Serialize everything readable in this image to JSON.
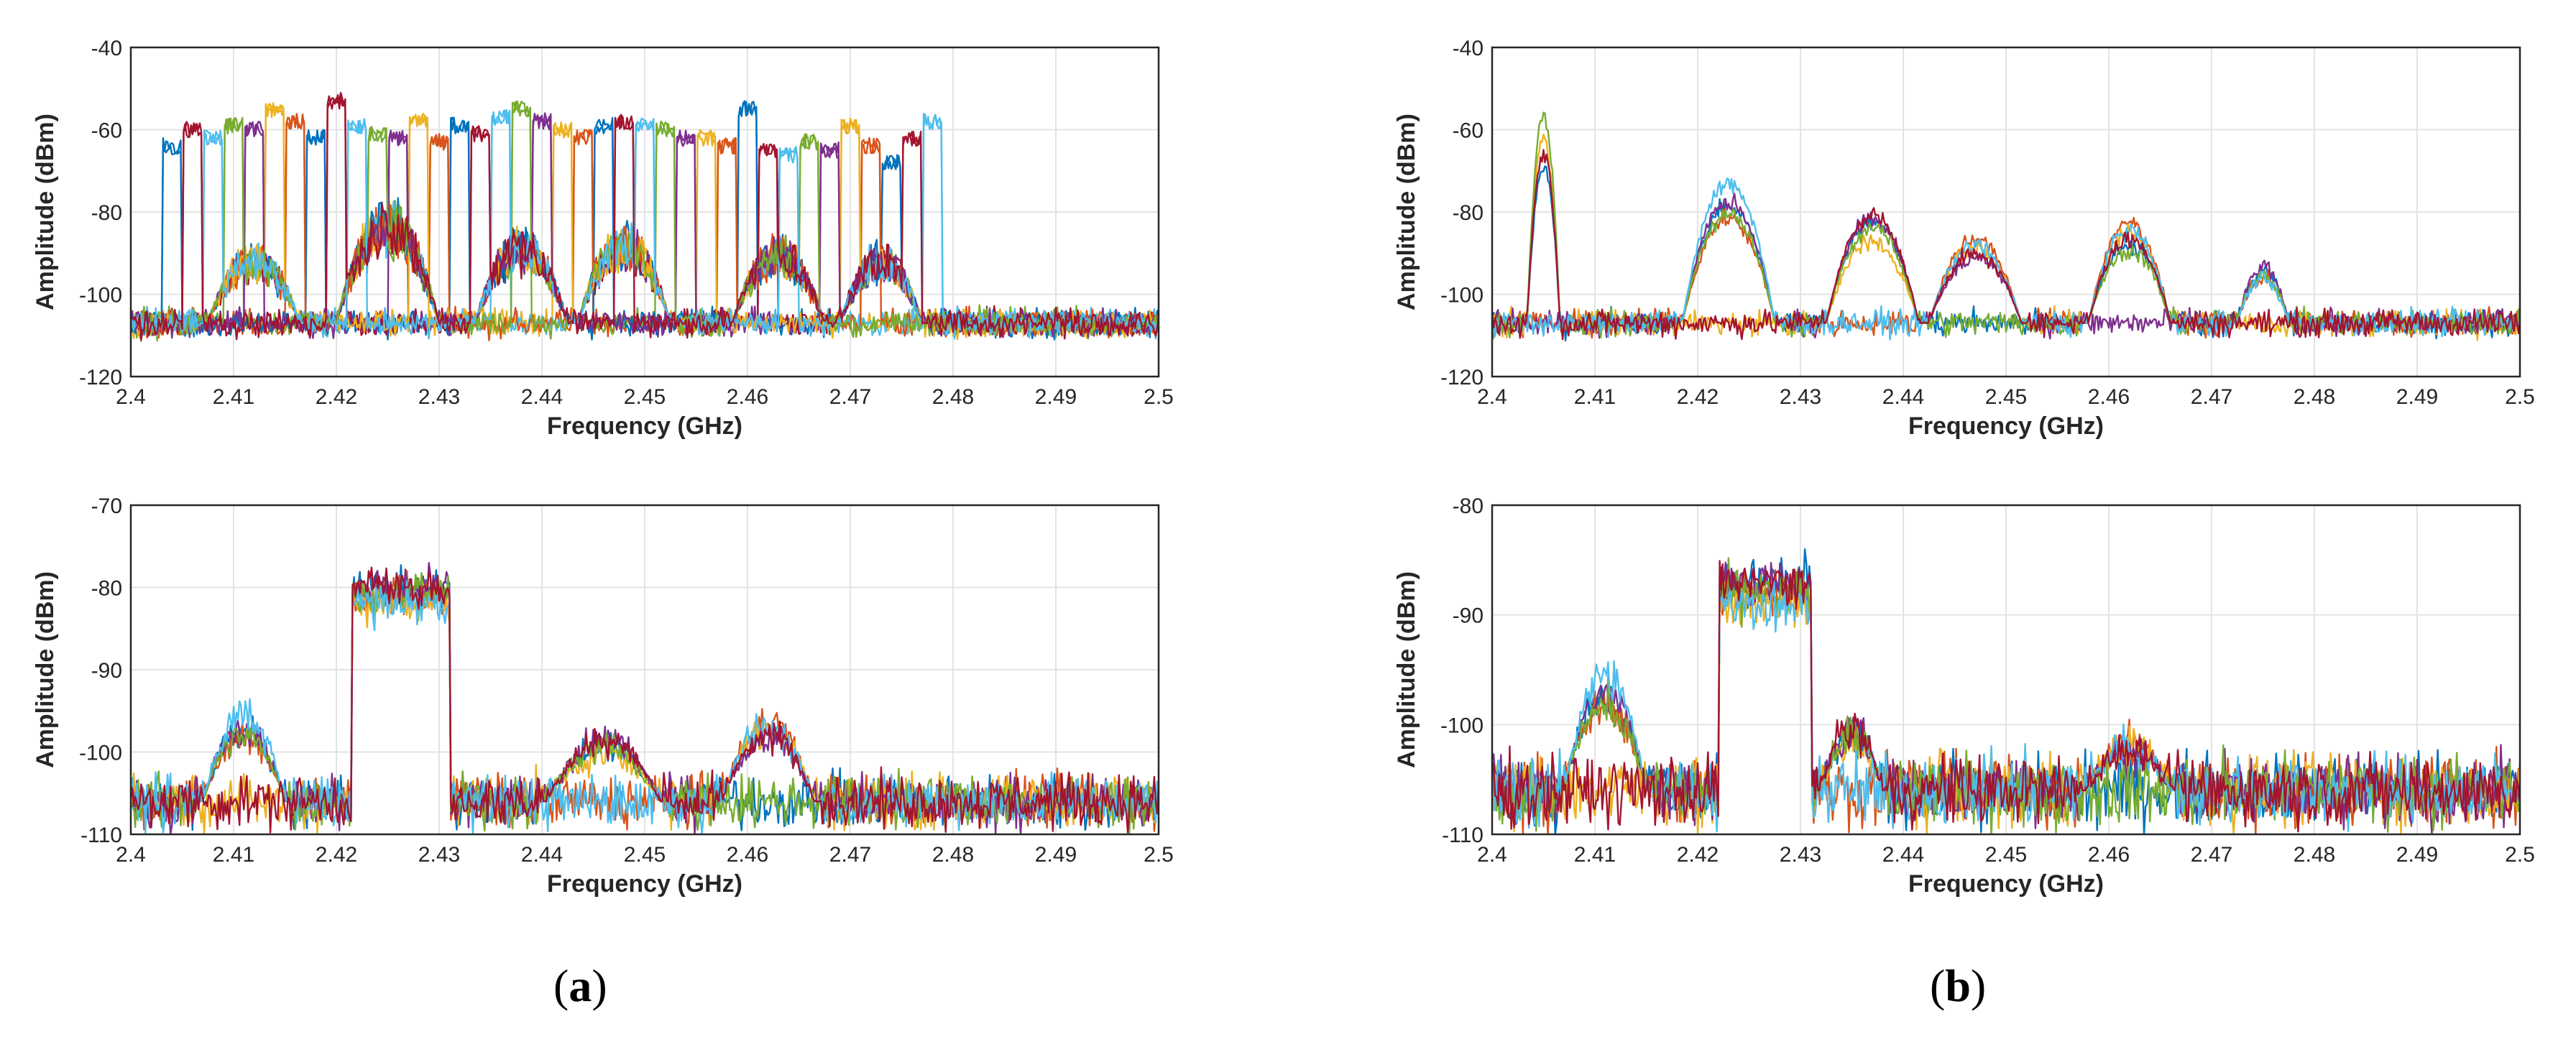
{
  "chart_data": [
    {
      "type": "line",
      "panel": "a",
      "position": "top",
      "title": "",
      "xlabel": "Frequency (GHz)",
      "ylabel": "Amplitude (dBm)",
      "xlim": [
        2.4,
        2.5
      ],
      "ylim": [
        -120,
        -40
      ],
      "xticks": [
        "2.4",
        "2.41",
        "2.42",
        "2.43",
        "2.44",
        "2.45",
        "2.46",
        "2.47",
        "2.48",
        "2.49",
        "2.5"
      ],
      "yticks": [
        "-40",
        "-60",
        "-80",
        "-100",
        "-120"
      ],
      "grid": true,
      "noise_floor_dBm": -107,
      "description_of_series": "Many overlaid spectrum sweeps; narrow 2 MHz channel hops up to about -55 dBm and wideband humps",
      "series": [
        {
          "name": "hops",
          "channels_GHz": [
            2.404,
            2.406,
            2.408,
            2.41,
            2.412,
            2.414,
            2.416,
            2.418,
            2.42,
            2.422,
            2.424,
            2.426,
            2.428,
            2.43,
            2.432,
            2.434,
            2.436,
            2.438,
            2.44,
            2.442,
            2.444,
            2.446,
            2.448,
            2.45,
            2.452,
            2.454,
            2.456,
            2.458,
            2.46,
            2.462,
            2.464,
            2.466,
            2.468,
            2.47,
            2.472,
            2.474,
            2.476,
            2.478
          ],
          "peaks_dBm": [
            -62,
            -58,
            -60,
            -57,
            -58,
            -53,
            -56,
            -60,
            -51,
            -57,
            -59,
            -60,
            -56,
            -61,
            -57,
            -59,
            -55,
            -53,
            -56,
            -58,
            -60,
            -57,
            -56,
            -57,
            -58,
            -60,
            -60,
            -62,
            -53,
            -63,
            -64,
            -61,
            -63,
            -57,
            -62,
            -66,
            -60,
            -56
          ]
        },
        {
          "name": "wideband humps",
          "centers_GHz": [
            2.412,
            2.425,
            2.438,
            2.448,
            2.463,
            2.473
          ],
          "widths_MHz": [
            9,
            10,
            9,
            9,
            9,
            8
          ],
          "peaks_dBm": [
            -88,
            -77,
            -84,
            -83,
            -86,
            -88
          ]
        }
      ]
    },
    {
      "type": "line",
      "panel": "a",
      "position": "bottom",
      "title": "",
      "xlabel": "Frequency (GHz)",
      "ylabel": "Amplitude (dBm)",
      "xlim": [
        2.4,
        2.5
      ],
      "ylim": [
        -110,
        -70
      ],
      "xticks": [
        "2.4",
        "2.41",
        "2.42",
        "2.43",
        "2.44",
        "2.45",
        "2.46",
        "2.47",
        "2.48",
        "2.49",
        "2.5"
      ],
      "yticks": [
        "-70",
        "-80",
        "-90",
        "-100",
        "-110"
      ],
      "grid": true,
      "noise_floor_dBm": -106,
      "features": [
        {
          "name": "plateau",
          "from_GHz": 2.4215,
          "to_GHz": 2.431,
          "level_dBm": -80
        },
        {
          "name": "hump",
          "center_GHz": 2.411,
          "width_MHz": 8,
          "peak_dBm": -95
        },
        {
          "name": "hump",
          "center_GHz": 2.446,
          "width_MHz": 11,
          "peak_dBm": -98
        },
        {
          "name": "hump",
          "center_GHz": 2.462,
          "width_MHz": 9,
          "peak_dBm": -95
        }
      ]
    },
    {
      "type": "line",
      "panel": "b",
      "position": "top",
      "title": "",
      "xlabel": "Frequency (GHz)",
      "ylabel": "Amplitude (dBm)",
      "xlim": [
        2.4,
        2.5
      ],
      "ylim": [
        -120,
        -40
      ],
      "xticks": [
        "2.4",
        "2.41",
        "2.42",
        "2.43",
        "2.44",
        "2.45",
        "2.46",
        "2.47",
        "2.48",
        "2.49",
        "2.5"
      ],
      "yticks": [
        "-40",
        "-60",
        "-80",
        "-100",
        "-120"
      ],
      "grid": true,
      "noise_floor_dBm": -107,
      "features": [
        {
          "name": "spike",
          "center_GHz": 2.405,
          "width_MHz": 2,
          "peak_dBm": -53
        },
        {
          "name": "hump",
          "center_GHz": 2.423,
          "width_MHz": 9,
          "peak_dBm": -71
        },
        {
          "name": "hump",
          "center_GHz": 2.437,
          "width_MHz": 9,
          "peak_dBm": -79
        },
        {
          "name": "hump",
          "center_GHz": 2.447,
          "width_MHz": 9,
          "peak_dBm": -84
        },
        {
          "name": "hump",
          "center_GHz": 2.462,
          "width_MHz": 8,
          "peak_dBm": -82
        },
        {
          "name": "hump",
          "center_GHz": 2.475,
          "width_MHz": 5,
          "peak_dBm": -92
        }
      ]
    },
    {
      "type": "line",
      "panel": "b",
      "position": "bottom",
      "title": "",
      "xlabel": "Frequency (GHz)",
      "ylabel": "Amplitude (dBm)",
      "xlim": [
        2.4,
        2.5
      ],
      "ylim": [
        -110,
        -80
      ],
      "xticks": [
        "2.4",
        "2.41",
        "2.42",
        "2.43",
        "2.44",
        "2.45",
        "2.46",
        "2.47",
        "2.48",
        "2.49",
        "2.5"
      ],
      "yticks": [
        "-80",
        "-90",
        "-100",
        "-110"
      ],
      "grid": true,
      "noise_floor_dBm": -106,
      "features": [
        {
          "name": "plateau",
          "from_GHz": 2.422,
          "to_GHz": 2.431,
          "level_dBm": -87
        },
        {
          "name": "hump",
          "center_GHz": 2.411,
          "width_MHz": 8,
          "peak_dBm": -95
        },
        {
          "name": "slope",
          "center_GHz": 2.435,
          "width_MHz": 6,
          "peak_dBm": -100
        },
        {
          "name": "hump",
          "center_GHz": 2.462,
          "width_MHz": 8,
          "peak_dBm": -101
        }
      ]
    }
  ],
  "series_colors": [
    "#0072BD",
    "#D95319",
    "#EDB120",
    "#7E2F8E",
    "#77AC30",
    "#4DBEEE",
    "#A2142F"
  ],
  "captions": {
    "a": "a",
    "b": "b"
  }
}
